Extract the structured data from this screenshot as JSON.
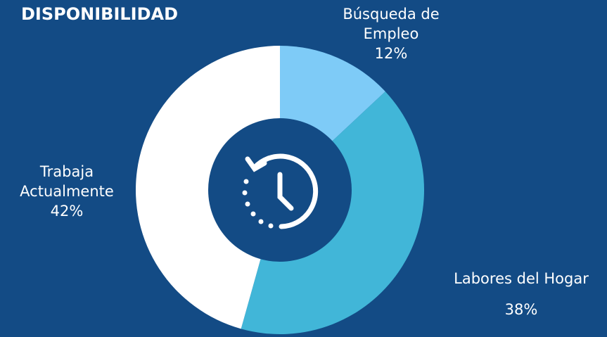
{
  "chart_data": {
    "type": "pie",
    "donut": true,
    "title": "DISPONIBILIDAD",
    "categories": [
      "Búsqueda de Empleo",
      "Labores del Hogar",
      "Trabaja Actualmente"
    ],
    "values": [
      12,
      38,
      42
    ],
    "value_labels": [
      "12%",
      "38%",
      "42%"
    ],
    "colors": [
      "#7ecbf7",
      "#41b6d8",
      "#ffffff"
    ]
  }
}
